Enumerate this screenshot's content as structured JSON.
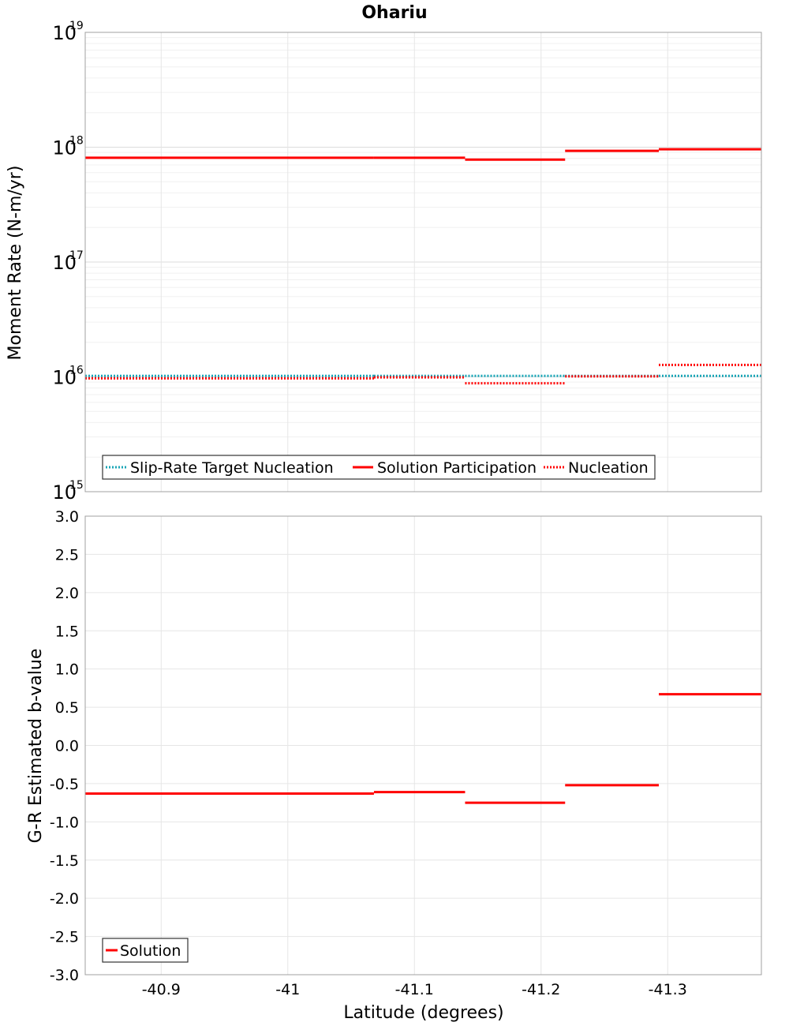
{
  "chart_data": {
    "type": "line",
    "title": "Ohariu",
    "x_axis": {
      "label": "Latitude (degrees)",
      "range": [
        -40.84,
        -41.374
      ],
      "ticks": [
        -40.9,
        -41.0,
        -41.1,
        -41.2,
        -41.3
      ],
      "tick_labels": [
        "-40.9",
        "-41",
        "-41.1",
        "-41.2",
        "-41.3"
      ],
      "grid": true
    },
    "panels": [
      {
        "id": "moment",
        "ylabel": "Moment Rate (N-m/yr)",
        "yscale": "log",
        "ylim_exp": [
          15,
          19
        ],
        "ytick_base": "10",
        "ytick_exponents": [
          "15",
          "16",
          "17",
          "18",
          "19"
        ],
        "legend": {
          "position": "bottom-left",
          "entries": [
            "Slip-Rate Target Nucleation",
            "Solution Participation",
            "Nucleation"
          ]
        },
        "series": [
          {
            "name": "Slip-Rate Target Nucleation",
            "style": "dotted",
            "color": "#1aa6b7",
            "segments": [
              {
                "x0": -40.84,
                "x1": -41.068,
                "value": 1.02e+16
              },
              {
                "x0": -41.068,
                "x1": -41.14,
                "value": 1.02e+16
              },
              {
                "x0": -41.14,
                "x1": -41.219,
                "value": 1.02e+16
              },
              {
                "x0": -41.219,
                "x1": -41.293,
                "value": 1.02e+16
              },
              {
                "x0": -41.293,
                "x1": -41.374,
                "value": 1.02e+16
              }
            ]
          },
          {
            "name": "Solution Participation",
            "style": "solid",
            "color": "#ff0000",
            "segments": [
              {
                "x0": -40.84,
                "x1": -41.068,
                "value": 8.1e+17
              },
              {
                "x0": -41.068,
                "x1": -41.14,
                "value": 8.1e+17
              },
              {
                "x0": -41.14,
                "x1": -41.219,
                "value": 7.8e+17
              },
              {
                "x0": -41.219,
                "x1": -41.293,
                "value": 9.3e+17
              },
              {
                "x0": -41.293,
                "x1": -41.374,
                "value": 9.6e+17
              }
            ]
          },
          {
            "name": "Nucleation",
            "style": "dotted",
            "color": "#ff0000",
            "segments": [
              {
                "x0": -40.84,
                "x1": -41.068,
                "value": 9700000000000000.0
              },
              {
                "x0": -41.068,
                "x1": -41.14,
                "value": 9900000000000000.0
              },
              {
                "x0": -41.14,
                "x1": -41.219,
                "value": 8800000000000000.0
              },
              {
                "x0": -41.219,
                "x1": -41.293,
                "value": 1.01e+16
              },
              {
                "x0": -41.293,
                "x1": -41.374,
                "value": 1.27e+16
              }
            ]
          }
        ]
      },
      {
        "id": "bvalue",
        "ylabel": "G-R Estimated b-value",
        "yscale": "linear",
        "ylim": [
          -3.0,
          3.0
        ],
        "yticks": [
          -3.0,
          -2.5,
          -2.0,
          -1.5,
          -1.0,
          -0.5,
          0.0,
          0.5,
          1.0,
          1.5,
          2.0,
          2.5,
          3.0
        ],
        "ytick_labels": [
          "-3.0",
          "-2.5",
          "-2.0",
          "-1.5",
          "-1.0",
          "-0.5",
          "0.0",
          "0.5",
          "1.0",
          "1.5",
          "2.0",
          "2.5",
          "3.0"
        ],
        "legend": {
          "position": "bottom-left",
          "entries": [
            "Solution"
          ]
        },
        "series": [
          {
            "name": "Solution",
            "style": "solid",
            "color": "#ff0000",
            "segments": [
              {
                "x0": -40.84,
                "x1": -41.068,
                "value": -0.63
              },
              {
                "x0": -41.068,
                "x1": -41.14,
                "value": -0.61
              },
              {
                "x0": -41.14,
                "x1": -41.219,
                "value": -0.75
              },
              {
                "x0": -41.219,
                "x1": -41.293,
                "value": -0.52
              },
              {
                "x0": -41.293,
                "x1": -41.374,
                "value": 0.67
              }
            ]
          }
        ]
      }
    ]
  }
}
